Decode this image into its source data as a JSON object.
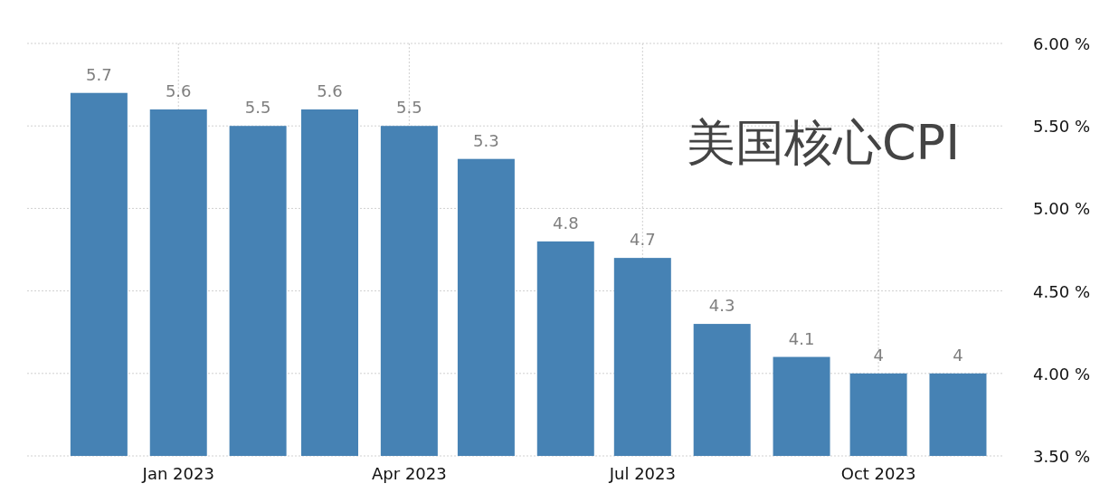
{
  "chart_data": {
    "type": "bar",
    "title": "美国核心CPI",
    "x": [
      "2022-12",
      "2023-01",
      "2023-02",
      "2023-03",
      "2023-04",
      "2023-05",
      "2023-06",
      "2023-07",
      "2023-08",
      "2023-09",
      "2023-10",
      "2023-11"
    ],
    "values": [
      5.7,
      5.6,
      5.5,
      5.6,
      5.5,
      5.3,
      4.8,
      4.7,
      4.3,
      4.1,
      4,
      4
    ],
    "color": "#4682b4",
    "data_labels": true,
    "xlim": [
      "2022-11-03",
      "2023-11-19"
    ],
    "xticks": [
      {
        "value": "2023-01",
        "label": "Jan 2023"
      },
      {
        "value": "2023-04",
        "label": "Apr 2023"
      },
      {
        "value": "2023-07",
        "label": "Jul 2023"
      },
      {
        "value": "2023-10",
        "label": "Oct 2023"
      }
    ],
    "ylim": [
      3.5,
      6.0
    ],
    "yticks": [
      {
        "value": 3.5,
        "label": "3.50 %"
      },
      {
        "value": 4.0,
        "label": "4.00 %"
      },
      {
        "value": 4.5,
        "label": "4.50 %"
      },
      {
        "value": 5.0,
        "label": "5.00 %"
      },
      {
        "value": 5.5,
        "label": "5.50 %"
      },
      {
        "value": 6.0,
        "label": "6.00 %"
      }
    ],
    "grid": true
  }
}
